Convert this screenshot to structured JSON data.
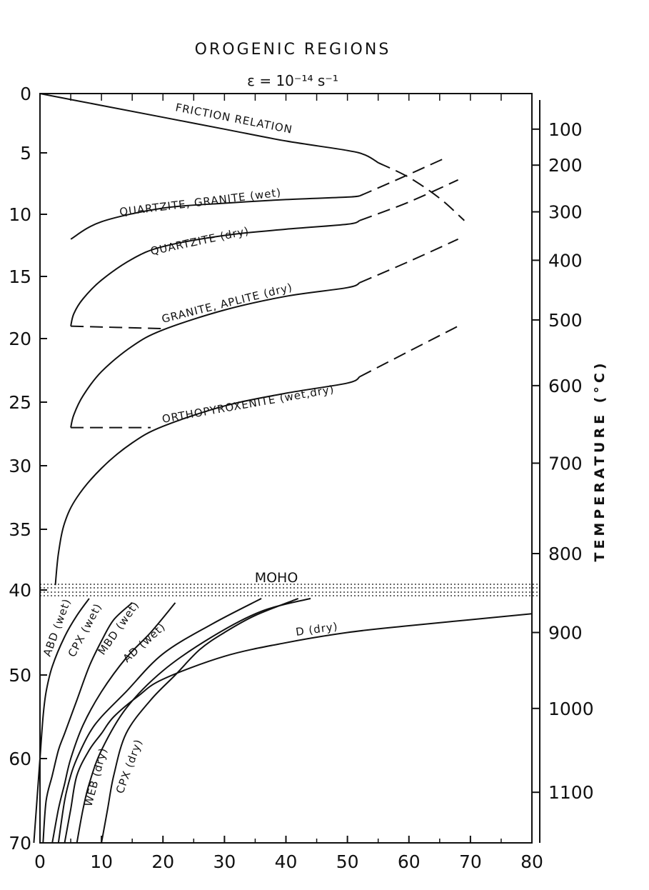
{
  "chart_data": {
    "type": "line",
    "title": "OROGENIC REGIONS",
    "subtitle": "ε = 10⁻¹⁴ s⁻¹",
    "xlim": [
      0,
      80
    ],
    "ylim": [
      0,
      70
    ],
    "y_inverted": true,
    "x_ticks": [
      0,
      10,
      20,
      30,
      40,
      50,
      60,
      70,
      80
    ],
    "y_ticks": [
      0,
      5,
      10,
      15,
      20,
      25,
      30,
      35,
      40,
      50,
      60,
      70
    ],
    "right_axis": {
      "label": "TEMPERATURE (°C)",
      "ticks": [
        {
          "label": "100",
          "depth": 3
        },
        {
          "label": "200",
          "depth": 6
        },
        {
          "label": "300",
          "depth": 9.8
        },
        {
          "label": "400",
          "depth": 13.7
        },
        {
          "label": "500",
          "depth": 18.5
        },
        {
          "label": "600",
          "depth": 23.7
        },
        {
          "label": "700",
          "depth": 29.8
        },
        {
          "label": "800",
          "depth": 37
        },
        {
          "label": "900",
          "depth": 45
        },
        {
          "label": "1000",
          "depth": 54
        },
        {
          "label": "1100",
          "depth": 64
        }
      ]
    },
    "moho": {
      "label": "MOHO",
      "depth": 40
    },
    "series": [
      {
        "name": "FRICTION RELATION",
        "style": "solid",
        "points": [
          [
            0,
            0
          ],
          [
            10,
            1
          ],
          [
            20,
            2
          ],
          [
            30,
            3
          ],
          [
            40,
            4
          ],
          [
            50,
            4.8
          ],
          [
            53,
            5.2
          ],
          [
            55,
            5.8
          ]
        ]
      },
      {
        "name": "FRICTION RELATION",
        "style": "dashed",
        "points": [
          [
            55,
            5.8
          ],
          [
            60,
            7
          ],
          [
            65,
            8.7
          ],
          [
            69,
            10.5
          ]
        ]
      },
      {
        "name": "QUARTZITE, GRANITE (wet)",
        "style": "solid",
        "points": [
          [
            5,
            12
          ],
          [
            10,
            10.6
          ],
          [
            20,
            9.5
          ],
          [
            30,
            9.1
          ],
          [
            40,
            8.8
          ],
          [
            50,
            8.6
          ],
          [
            52,
            8.5
          ]
        ]
      },
      {
        "name": "QUARTZITE, GRANITE (wet)",
        "style": "dashed",
        "points": [
          [
            52,
            8.5
          ],
          [
            58,
            7.2
          ],
          [
            66,
            5.4
          ]
        ]
      },
      {
        "name": "QUARTZITE (dry)",
        "style": "solid",
        "points": [
          [
            5,
            19
          ],
          [
            5.5,
            18
          ],
          [
            7,
            16.8
          ],
          [
            10,
            15.3
          ],
          [
            15,
            13.6
          ],
          [
            20,
            12.6
          ],
          [
            30,
            11.7
          ],
          [
            40,
            11.2
          ],
          [
            50,
            10.8
          ],
          [
            52,
            10.5
          ]
        ]
      },
      {
        "name": "QUARTZITE (dry)",
        "style": "dashed",
        "points": [
          [
            52,
            10.5
          ],
          [
            60,
            9
          ],
          [
            68,
            7.2
          ]
        ]
      },
      {
        "name": "QUARTZITE (dry)",
        "style": "dashed",
        "points": [
          [
            5,
            19
          ],
          [
            20,
            19.2
          ]
        ]
      },
      {
        "name": "GRANITE, APLITE (dry)",
        "style": "solid",
        "points": [
          [
            5,
            27
          ],
          [
            5.5,
            26
          ],
          [
            7,
            24.5
          ],
          [
            10,
            22.6
          ],
          [
            15,
            20.6
          ],
          [
            20,
            19.3
          ],
          [
            30,
            17.7
          ],
          [
            40,
            16.6
          ],
          [
            50,
            15.9
          ],
          [
            52,
            15.5
          ]
        ]
      },
      {
        "name": "GRANITE, APLITE (dry)",
        "style": "dashed",
        "points": [
          [
            52,
            15.5
          ],
          [
            60,
            13.8
          ],
          [
            68,
            12
          ]
        ]
      },
      {
        "name": "GRANITE, APLITE (dry)",
        "style": "dashed",
        "points": [
          [
            5,
            27
          ],
          [
            18,
            27
          ]
        ]
      },
      {
        "name": "ORTHOPYROXENITE (wet,dry)",
        "style": "solid",
        "points": [
          [
            2.5,
            39.6
          ],
          [
            3,
            37
          ],
          [
            4,
            34.5
          ],
          [
            6,
            32.5
          ],
          [
            10,
            30.2
          ],
          [
            15,
            28.2
          ],
          [
            20,
            26.9
          ],
          [
            30,
            25.3
          ],
          [
            40,
            24.3
          ],
          [
            50,
            23.5
          ],
          [
            52,
            23
          ]
        ]
      },
      {
        "name": "ORTHOPYROXENITE (wet,dry)",
        "style": "dashed",
        "points": [
          [
            52,
            23
          ],
          [
            60,
            21
          ],
          [
            68,
            19
          ]
        ]
      },
      {
        "name": "ABD (wet)",
        "style": "solid",
        "points": [
          [
            -1,
            70
          ],
          [
            -0.5,
            65
          ],
          [
            0,
            60
          ],
          [
            0.5,
            55
          ],
          [
            1,
            52
          ],
          [
            2,
            49
          ],
          [
            4,
            45.5
          ],
          [
            6,
            43
          ],
          [
            8,
            41
          ]
        ]
      },
      {
        "name": "CPX (wet)",
        "style": "solid",
        "points": [
          [
            0.5,
            70
          ],
          [
            1,
            65
          ],
          [
            2,
            62
          ],
          [
            3,
            59
          ],
          [
            4,
            57
          ],
          [
            6,
            53
          ],
          [
            8,
            49
          ],
          [
            10,
            46
          ],
          [
            12,
            43.5
          ],
          [
            15,
            41.5
          ]
        ]
      },
      {
        "name": "MBD (wet)",
        "style": "solid",
        "points": [
          [
            2,
            70
          ],
          [
            3,
            66
          ],
          [
            4,
            63
          ],
          [
            5,
            60
          ],
          [
            7,
            56
          ],
          [
            10,
            52
          ],
          [
            14,
            48
          ],
          [
            18,
            45
          ],
          [
            22,
            41.5
          ]
        ]
      },
      {
        "name": "AD (wet)",
        "style": "solid",
        "points": [
          [
            3,
            70
          ],
          [
            4,
            65
          ],
          [
            5,
            62
          ],
          [
            6,
            60
          ],
          [
            8,
            57
          ],
          [
            10,
            55
          ],
          [
            14,
            52
          ],
          [
            20,
            47.5
          ],
          [
            28,
            44
          ],
          [
            36,
            41
          ]
        ]
      },
      {
        "name": "WEB (dry)",
        "style": "solid",
        "points": [
          [
            6,
            70
          ],
          [
            7,
            66
          ],
          [
            8,
            63
          ],
          [
            10,
            59
          ],
          [
            14,
            54
          ],
          [
            20,
            49.5
          ],
          [
            28,
            45.5
          ],
          [
            36,
            42.5
          ],
          [
            44,
            41
          ]
        ]
      },
      {
        "name": "CPX (dry)",
        "style": "solid",
        "points": [
          [
            10,
            70
          ],
          [
            11,
            66
          ],
          [
            12,
            62
          ],
          [
            14,
            57
          ],
          [
            18,
            53
          ],
          [
            22,
            50
          ],
          [
            26,
            47
          ],
          [
            30,
            45
          ],
          [
            35,
            43
          ],
          [
            42,
            41
          ]
        ]
      },
      {
        "name": "D (dry)",
        "style": "solid",
        "points": [
          [
            4,
            70
          ],
          [
            5,
            66
          ],
          [
            6,
            62
          ],
          [
            8,
            59
          ],
          [
            10,
            57
          ],
          [
            12,
            55
          ],
          [
            16,
            52.5
          ],
          [
            20,
            50.5
          ],
          [
            30,
            47.8
          ],
          [
            40,
            46.2
          ],
          [
            50,
            45
          ],
          [
            60,
            44.2
          ],
          [
            70,
            43.5
          ],
          [
            80,
            42.8
          ]
        ]
      }
    ]
  }
}
